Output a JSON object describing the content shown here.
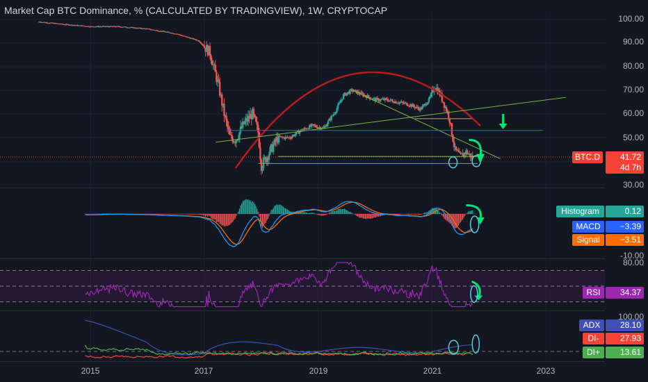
{
  "title": "Market Cap BTC Dominance, % (CALCULATED BY TRADINGVIEW), 1W, CRYPTOCAP",
  "colors": {
    "background": "#131722",
    "up": "#26a69a",
    "down": "#ef5350",
    "arc": "#b71c1c",
    "green_line": "#7cb342",
    "blue_line": "#2962ff",
    "brown_line": "#8d6e63",
    "teal_circle": "#4dd0e1",
    "arrow": "#00e676",
    "macd": "#2196f3",
    "signal": "#ff6d00",
    "rsi": "#9c27b0",
    "adx": "#3f51b5",
    "di_minus": "#f44336",
    "di_plus": "#4caf50"
  },
  "price_axis": {
    "ticks": [
      "100.00",
      "90.00",
      "80.00",
      "70.00",
      "60.00",
      "50.00",
      "40.00",
      "30.00"
    ],
    "min": 30,
    "max": 100
  },
  "time_axis": {
    "ticks": [
      "2015",
      "2017",
      "2019",
      "2021",
      "2023"
    ]
  },
  "price_tag": {
    "symbol": "BTC.D",
    "value": "41.72",
    "countdown": "4d 7h"
  },
  "macd_pane": {
    "histogram_label": "Histogram",
    "histogram_value": "0.12",
    "macd_label": "MACD",
    "macd_value": "−3.39",
    "signal_label": "Signal",
    "signal_value": "−3.51",
    "axis_tick": "-10.00"
  },
  "rsi_pane": {
    "label": "RSI",
    "value": "34.37",
    "axis_top": "80.00",
    "upper_band": 70,
    "lower_band": 30
  },
  "adx_pane": {
    "adx_label": "ADX",
    "adx_value": "28.10",
    "di_minus_label": "DI-",
    "di_minus_value": "27.93",
    "di_plus_label": "DI+",
    "di_plus_value": "13.61",
    "axis_top": "100.00"
  },
  "chart_data": {
    "type": "candlestick",
    "ylim": [
      30,
      100
    ],
    "x_range": [
      2014.0,
      2023.5
    ],
    "series": [
      {
        "name": "BTC.D",
        "x": [
          2014.1,
          2014.5,
          2015.0,
          2015.5,
          2016.0,
          2016.5,
          2016.9,
          2017.1,
          2017.25,
          2017.35,
          2017.45,
          2017.55,
          2017.7,
          2017.85,
          2017.95,
          2018.0,
          2018.1,
          2018.3,
          2018.5,
          2018.7,
          2018.9,
          2019.1,
          2019.3,
          2019.45,
          2019.6,
          2019.8,
          2020.0,
          2020.2,
          2020.4,
          2020.6,
          2020.8,
          2020.95,
          2021.05,
          2021.15,
          2021.3,
          2021.4,
          2021.5,
          2021.6,
          2021.7
        ],
        "y": [
          99,
          98,
          97,
          97,
          96,
          94,
          91,
          86,
          72,
          60,
          50,
          49,
          56,
          60,
          52,
          38,
          42,
          50,
          50,
          53,
          55,
          54,
          61,
          68,
          70,
          68,
          66,
          66,
          65,
          64,
          62,
          66,
          72,
          68,
          59,
          45,
          42,
          44,
          41.7
        ]
      }
    ],
    "annotations": [
      "resistance arc",
      "trendlines",
      "support lines",
      "circle markers",
      "down arrows"
    ]
  }
}
